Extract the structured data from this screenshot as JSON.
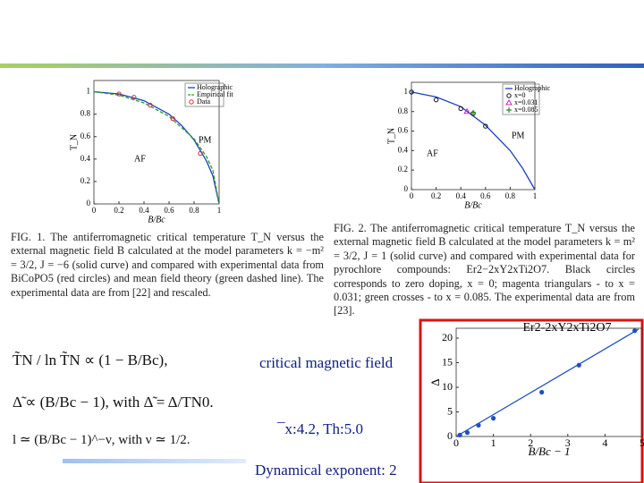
{
  "chart_data": [
    {
      "type": "line",
      "xlabel": "B/Bc",
      "ylabel": "T_N",
      "xlim": [
        0,
        1
      ],
      "ylim": [
        0,
        1.1
      ],
      "xticks": [
        0,
        0.2,
        0.4,
        0.6,
        0.8,
        1
      ],
      "yticks": [
        0,
        0.2,
        0.4,
        0.6,
        0.8,
        1
      ],
      "annotations": [
        "AF",
        "PM"
      ],
      "series": [
        {
          "name": "Holographic",
          "color": "#1f3fbf",
          "x": [
            0,
            0.2,
            0.4,
            0.6,
            0.7,
            0.8,
            0.9,
            0.95,
            1
          ],
          "values": [
            1,
            0.98,
            0.92,
            0.8,
            0.7,
            0.57,
            0.38,
            0.25,
            0
          ]
        },
        {
          "name": "Empirical fit",
          "color": "#2a9d2a",
          "dash": true,
          "x": [
            0,
            0.2,
            0.4,
            0.6,
            0.8,
            0.9,
            0.95,
            1
          ],
          "values": [
            1,
            0.97,
            0.9,
            0.78,
            0.58,
            0.42,
            0.3,
            0
          ]
        },
        {
          "name": "Data",
          "color": "#d03030",
          "marker": "circle",
          "x": [
            0.2,
            0.32,
            0.45,
            0.63,
            0.85
          ],
          "values": [
            0.98,
            0.95,
            0.88,
            0.76,
            0.45
          ]
        }
      ]
    },
    {
      "type": "line",
      "xlabel": "B/Bc",
      "ylabel": "T_N",
      "xlim": [
        0,
        1
      ],
      "ylim": [
        0,
        1.1
      ],
      "xticks": [
        0,
        0.2,
        0.4,
        0.6,
        0.8,
        1
      ],
      "yticks": [
        0,
        0.2,
        0.4,
        0.6,
        0.8,
        1
      ],
      "annotations": [
        "AF",
        "PM"
      ],
      "series": [
        {
          "name": "Holographic",
          "color": "#1f3fbf",
          "x": [
            0,
            0.2,
            0.4,
            0.6,
            0.8,
            0.9,
            1
          ],
          "values": [
            1,
            0.95,
            0.85,
            0.66,
            0.4,
            0.22,
            0
          ]
        },
        {
          "name": "x=0",
          "color": "#111111",
          "marker": "circle",
          "x": [
            0,
            0.2,
            0.4,
            0.5,
            0.6
          ],
          "values": [
            1,
            0.92,
            0.83,
            0.78,
            0.65
          ]
        },
        {
          "name": "x=0.031",
          "color": "#d020d0",
          "marker": "triangle",
          "x": [
            0.45
          ],
          "values": [
            0.8
          ]
        },
        {
          "name": "x=0.085",
          "color": "#209020",
          "marker": "cross",
          "x": [
            0.5
          ],
          "values": [
            0.79
          ]
        }
      ]
    },
    {
      "type": "line",
      "title": "Er2-2xY2xTi2O7",
      "xlabel": "B/Bc − 1",
      "ylabel": "Δ",
      "xlim": [
        0,
        5
      ],
      "ylim": [
        0,
        22
      ],
      "xticks": [
        0,
        1,
        2,
        3,
        4,
        5
      ],
      "yticks": [
        0,
        5,
        10,
        15,
        20
      ],
      "series": [
        {
          "color": "#2050c0",
          "x": [
            0,
            4.9
          ],
          "values": [
            0,
            21.8
          ]
        },
        {
          "color": "#2050c0",
          "marker": "dot",
          "x": [
            0.1,
            0.3,
            0.6,
            1,
            2.3,
            3.3,
            4.8
          ],
          "values": [
            0.3,
            0.8,
            2.3,
            3.7,
            9,
            14.5,
            21.5
          ]
        }
      ]
    }
  ],
  "captions": [
    "FIG. 1. The antiferromagnetic critical temperature T_N versus the external magnetic field B calculated at the model parameters k = −m² = 3/2, J = −6 (solid curve) and compared with experimental data from BiCoPO5 (red circles) and mean field theory (green dashed line). The experimental data are from [22] and rescaled.",
    "FIG. 2. The antiferromagnetic critical temperature T_N versus the external magnetic field B calculated at the model parameters k = m² = 3/2, J = 1 (solid curve) and compared with experimental data for pyrochlore compounds: Er2−2xY2xTi2O7. Black circles corresponds to zero doping, x = 0; magenta triangulars - to x = 0.031; green crosses - to x = 0.085. The experimental data are from [23]."
  ],
  "formulas": [
    "T̃N / ln T̃N ∝ (1 − B/Bc),",
    "Δ̃ ∝ (B/Bc − 1), with Δ̃ = Δ/TN0.",
    "l ≃ (B/Bc − 1)^−ν,  with ν ≃ 1/2."
  ],
  "notes": [
    "critical magnetic field",
    "¯x:4.2, Th:5.0",
    "Dynamical exponent: 2"
  ]
}
